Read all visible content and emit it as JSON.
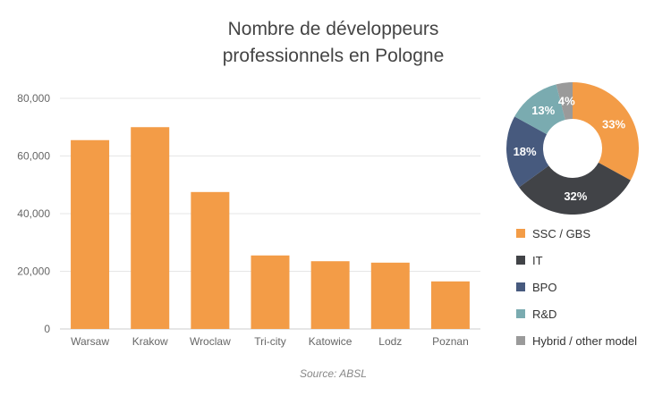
{
  "chart_data": [
    {
      "type": "bar",
      "title": "Nombre de développeurs professionnels en Pologne",
      "title_lines": [
        "Nombre de développeurs",
        "professionnels en Pologne"
      ],
      "categories": [
        "Warsaw",
        "Krakow",
        "Wroclaw",
        "Tri-city",
        "Katowice",
        "Lodz",
        "Poznan"
      ],
      "values": [
        65500,
        70000,
        47500,
        25500,
        23500,
        23000,
        16500
      ],
      "ylim": [
        0,
        80000
      ],
      "yticks": [
        0,
        20000,
        40000,
        60000,
        80000
      ],
      "ytick_labels": [
        "0",
        "20,000",
        "40,000",
        "60,000",
        "80,000"
      ],
      "xlabel": "",
      "ylabel": "",
      "grid": true,
      "bar_color": "#f39c47"
    },
    {
      "type": "pie",
      "donut": true,
      "slices": [
        {
          "label": "SSC / GBS",
          "value": 33,
          "display": "33%",
          "color": "#f39c47"
        },
        {
          "label": "IT",
          "value": 32,
          "display": "32%",
          "color": "#414347"
        },
        {
          "label": "BPO",
          "value": 18,
          "display": "18%",
          "color": "#475a7e"
        },
        {
          "label": "R&D",
          "value": 13,
          "display": "13%",
          "color": "#7aabb0"
        },
        {
          "label": "Hybrid / other model",
          "value": 4,
          "display": "4%",
          "color": "#9a9a9a"
        }
      ],
      "legend_position": "bottom"
    }
  ],
  "source": "Source: ABSL"
}
